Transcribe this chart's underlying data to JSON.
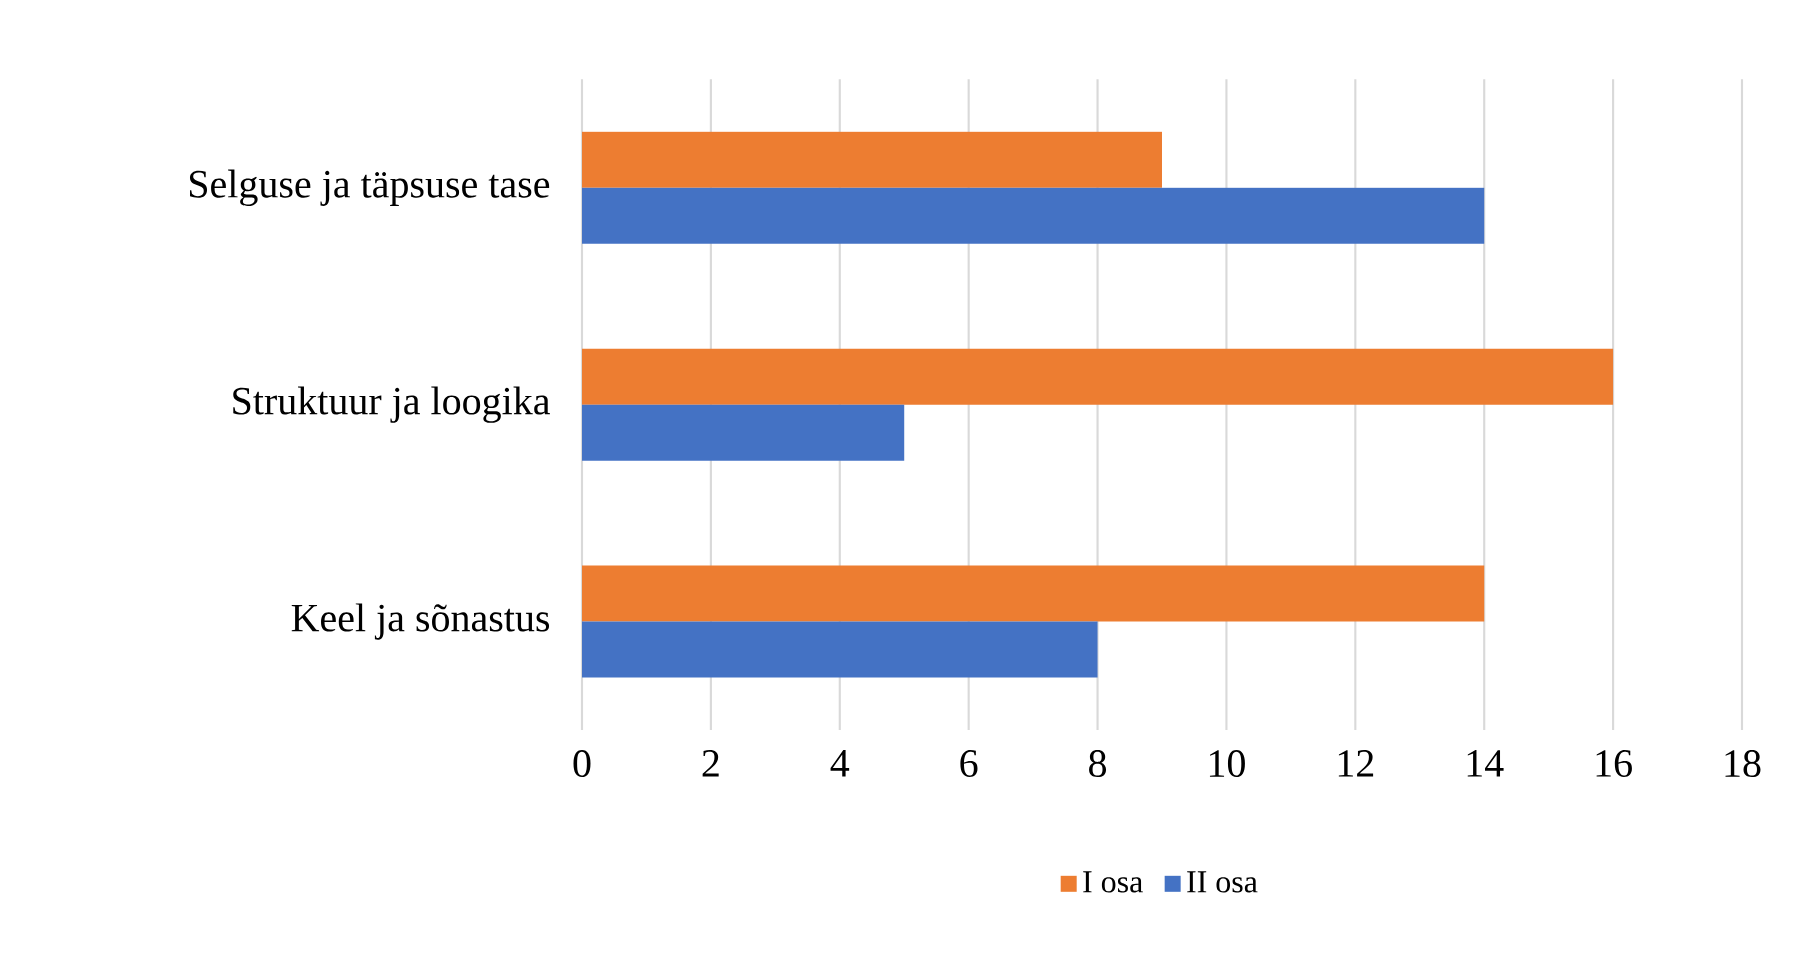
{
  "chart_data": {
    "type": "bar",
    "orientation": "horizontal",
    "categories": [
      "Selguse ja täpsuse tase",
      "Struktuur ja loogika",
      "Keel ja sõnastus"
    ],
    "series": [
      {
        "name": "I osa",
        "color": "#ed7d31",
        "values": [
          9,
          16,
          14
        ]
      },
      {
        "name": "II osa",
        "color": "#4472c4",
        "values": [
          14,
          5,
          8
        ]
      }
    ],
    "xlim": [
      0,
      18
    ],
    "xticks": [
      0,
      2,
      4,
      6,
      8,
      10,
      12,
      14,
      16,
      18
    ],
    "grid": "x",
    "legend": "bottom"
  }
}
